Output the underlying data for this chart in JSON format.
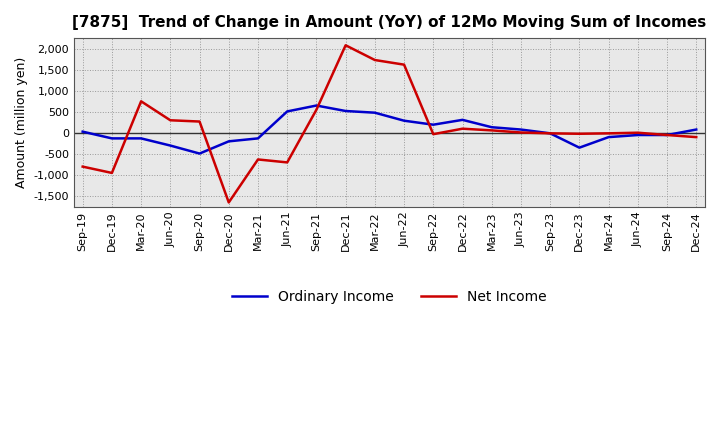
{
  "title": "[7875]  Trend of Change in Amount (YoY) of 12Mo Moving Sum of Incomes",
  "ylabel": "Amount (million yen)",
  "x_labels": [
    "Sep-19",
    "Dec-19",
    "Mar-20",
    "Jun-20",
    "Sep-20",
    "Dec-20",
    "Mar-21",
    "Jun-21",
    "Sep-21",
    "Dec-21",
    "Mar-22",
    "Jun-22",
    "Sep-22",
    "Dec-22",
    "Mar-23",
    "Jun-23",
    "Sep-23",
    "Dec-23",
    "Mar-24",
    "Jun-24",
    "Sep-24",
    "Dec-24"
  ],
  "ordinary_income": [
    30,
    -130,
    -130,
    -300,
    -490,
    -200,
    -130,
    510,
    650,
    520,
    480,
    290,
    195,
    310,
    135,
    80,
    -10,
    -350,
    -100,
    -50,
    -50,
    80
  ],
  "net_income": [
    -800,
    -950,
    750,
    300,
    270,
    -1650,
    -630,
    -700,
    550,
    2080,
    1730,
    1620,
    -30,
    100,
    60,
    10,
    -10,
    -20,
    -10,
    5,
    -50,
    -100
  ],
  "ordinary_income_color": "#0000cc",
  "net_income_color": "#cc0000",
  "ylim": [
    -1750,
    2250
  ],
  "yticks": [
    -1500,
    -1000,
    -500,
    0,
    500,
    1000,
    1500,
    2000
  ],
  "legend_labels": [
    "Ordinary Income",
    "Net Income"
  ],
  "background_color": "#ffffff",
  "plot_bg_color": "#e8e8e8",
  "grid_color": "#999999",
  "line_width": 1.8,
  "title_fontsize": 11,
  "axis_fontsize": 9,
  "tick_fontsize": 8
}
